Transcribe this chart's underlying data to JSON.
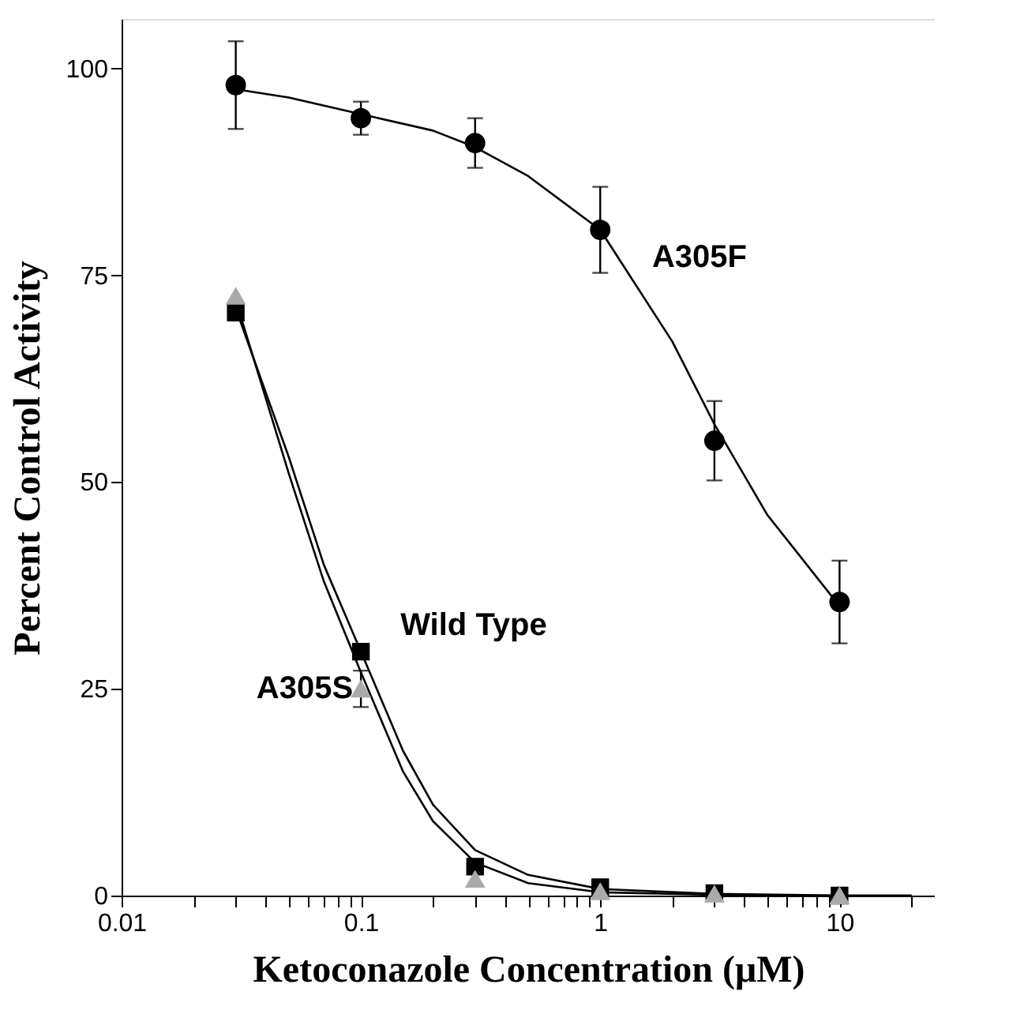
{
  "chart_data": {
    "type": "scatter",
    "xlabel": "Ketoconazole Concentration (μM)",
    "ylabel": "Percent Control Activity",
    "log": "x",
    "xlim": [
      0.01,
      25
    ],
    "ylim": [
      0,
      106
    ],
    "xticks": [
      {
        "value": 0.01,
        "label": "0.01"
      },
      {
        "value": 0.02,
        "label": null
      },
      {
        "value": 0.03,
        "label": null
      },
      {
        "value": 0.04,
        "label": null
      },
      {
        "value": 0.05,
        "label": null
      },
      {
        "value": 0.06,
        "label": null
      },
      {
        "value": 0.07,
        "label": null
      },
      {
        "value": 0.08,
        "label": null
      },
      {
        "value": 0.09,
        "label": null
      },
      {
        "value": 0.1,
        "label": "0.1"
      },
      {
        "value": 0.2,
        "label": null
      },
      {
        "value": 0.3,
        "label": null
      },
      {
        "value": 0.4,
        "label": null
      },
      {
        "value": 0.5,
        "label": null
      },
      {
        "value": 0.6,
        "label": null
      },
      {
        "value": 0.7,
        "label": null
      },
      {
        "value": 0.8,
        "label": null
      },
      {
        "value": 0.9,
        "label": null
      },
      1,
      {
        "value": 2,
        "label": null
      },
      {
        "value": 3,
        "label": null
      },
      {
        "value": 4,
        "label": null
      },
      {
        "value": 5,
        "label": null
      },
      {
        "value": 6,
        "label": null
      },
      {
        "value": 7,
        "label": null
      },
      {
        "value": 8,
        "label": null
      },
      {
        "value": 9,
        "label": null
      },
      10,
      {
        "value": 20,
        "label": null
      }
    ],
    "yticks": [
      0,
      25,
      50,
      75,
      100
    ],
    "grid": false,
    "series": [
      {
        "type": "line",
        "color": "#000000",
        "x": [
          0.03,
          0.05,
          0.1,
          0.2,
          0.3,
          0.5,
          1,
          2,
          3,
          5,
          10
        ],
        "values": [
          97.5,
          96.5,
          94.5,
          92.5,
          90.5,
          87,
          80.5,
          67,
          57,
          46,
          35
        ]
      },
      {
        "type": "line",
        "color": "#000000",
        "x": [
          0.03,
          0.05,
          0.07,
          0.1,
          0.15,
          0.2,
          0.3,
          0.5,
          1,
          3,
          10,
          20
        ],
        "values": [
          71,
          53,
          40,
          29.5,
          17.5,
          11,
          5.5,
          2.5,
          0.8,
          0.2,
          0,
          0
        ]
      },
      {
        "type": "line",
        "color": "#000000",
        "x": [
          0.03,
          0.05,
          0.07,
          0.1,
          0.15,
          0.2,
          0.3,
          0.5,
          1,
          3,
          10,
          20
        ],
        "values": [
          72,
          51,
          38,
          27,
          15,
          9,
          4,
          1.5,
          0.4,
          0.1,
          0,
          0
        ]
      },
      {
        "type": "scatter",
        "marker": "circle",
        "color": "#000000",
        "x": [
          0.03,
          0.1,
          0.3,
          1,
          3,
          10
        ],
        "values": [
          98,
          94,
          91,
          80.5,
          55,
          35.5
        ],
        "errors": [
          5.3,
          2,
          3,
          5.2,
          4.8,
          5
        ]
      },
      {
        "type": "scatter",
        "marker": "square",
        "color": "#000000",
        "x": [
          0.03,
          0.1,
          0.3,
          1,
          3,
          10
        ],
        "values": [
          70.5,
          29.5,
          3.5,
          1,
          0.3,
          0
        ]
      },
      {
        "type": "scatter",
        "marker": "triangle",
        "color": "#aaaaaa",
        "x": [
          0.03,
          0.1,
          0.3,
          1,
          3,
          10
        ],
        "values": [
          72.5,
          25,
          2,
          0.5,
          0.2,
          0
        ],
        "errors": [
          null,
          2.2,
          null,
          null,
          null,
          null
        ]
      }
    ],
    "annotations": [
      "A305F",
      "Wild Type",
      "A305S"
    ]
  }
}
